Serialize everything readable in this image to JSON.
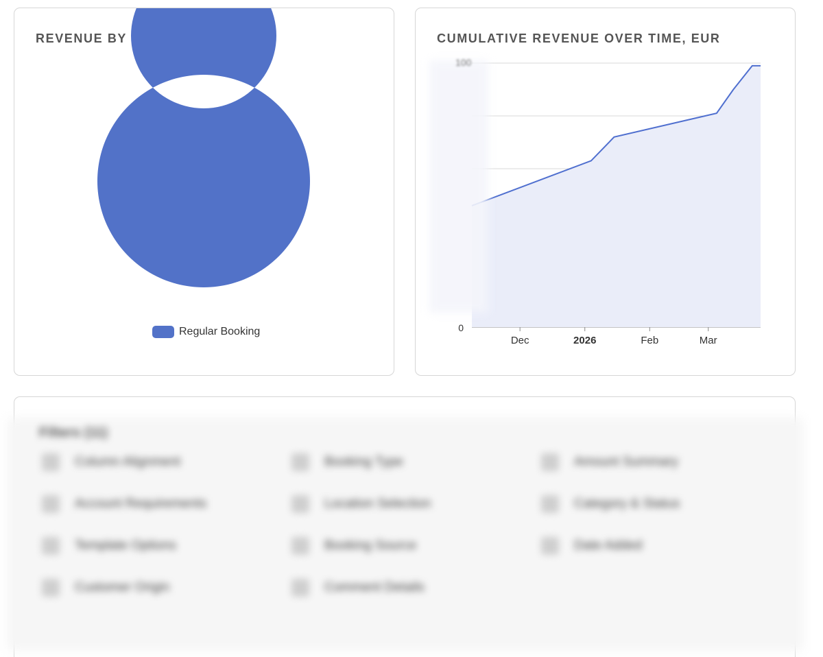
{
  "donut_card": {
    "title": "REVENUE BY BOOKING TYPE",
    "chart_data": {
      "type": "pie",
      "categories": [
        "Regular Booking"
      ],
      "values": [
        100
      ],
      "colors": [
        "#5272c8"
      ]
    },
    "legend": [
      {
        "label": "Regular Booking",
        "color": "#5272c8"
      }
    ]
  },
  "line_card": {
    "title": "CUMULATIVE REVENUE OVER TIME, EUR",
    "y_zero_label": "0",
    "y_top_label_partial": "100",
    "x_ticks": [
      "Dec",
      "2026",
      "Feb",
      "Mar"
    ],
    "chart_data": {
      "type": "area",
      "x": [
        "2025-11-08",
        "2026-01-04",
        "2026-01-15",
        "2026-03-05",
        "2026-03-13",
        "2026-03-22",
        "2026-03-26"
      ],
      "y": [
        46,
        63,
        72,
        81,
        90,
        99,
        99
      ],
      "ylim": [
        0,
        100
      ],
      "y_gridlines": [
        0,
        20,
        40,
        60,
        80,
        100
      ],
      "grid": true,
      "line_color": "#4f6fcf",
      "fill_color": "#eaedf9"
    }
  },
  "bottom_card": {
    "heading": "Filters (11)",
    "items": [
      "Column Alignment",
      "Booking Type",
      "Amount Summary",
      "Account Requirements",
      "Location Selection",
      "Category & Status",
      "Template Options",
      "Booking Source",
      "Date Added",
      "Customer Origin",
      "Comment Details"
    ]
  }
}
